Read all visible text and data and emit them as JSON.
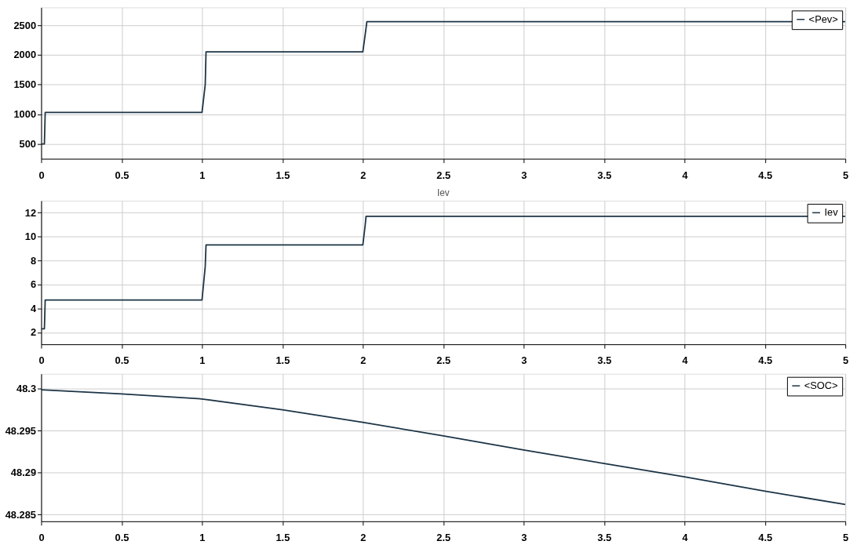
{
  "chart_data": [
    {
      "type": "line",
      "xlim": [
        0,
        5
      ],
      "xticks": [
        0,
        0.5,
        1,
        1.5,
        2,
        2.5,
        3,
        3.5,
        4,
        4.5,
        5
      ],
      "ylim": [
        250,
        2800
      ],
      "yticks": [
        500,
        1000,
        1500,
        2000,
        2500
      ],
      "grid": true,
      "legend": "top right",
      "series": [
        {
          "name": "<Pev>",
          "color": "#1c3446",
          "x": [
            0,
            0.02,
            0.025,
            1.0,
            1.02,
            1.025,
            2.0,
            2.02,
            2.025,
            5
          ],
          "values": [
            500,
            500,
            1030,
            1030,
            1500,
            2050,
            2050,
            2450,
            2560,
            2560
          ]
        }
      ]
    },
    {
      "type": "line",
      "title": "Iev",
      "xlim": [
        0,
        5
      ],
      "xticks": [
        0,
        0.5,
        1,
        1.5,
        2,
        2.5,
        3,
        3.5,
        4,
        4.5,
        5
      ],
      "ylim": [
        1,
        13
      ],
      "yticks": [
        2,
        4,
        6,
        8,
        10,
        12
      ],
      "grid": true,
      "legend": "top right",
      "series": [
        {
          "name": "Iev",
          "color": "#1c3446",
          "x": [
            0,
            0.02,
            0.025,
            1.0,
            1.02,
            1.025,
            2.0,
            2.015,
            2.02,
            5
          ],
          "values": [
            2.3,
            2.3,
            4.7,
            4.7,
            7.5,
            9.3,
            9.3,
            11,
            11.7,
            11.7
          ]
        }
      ]
    },
    {
      "type": "line",
      "xlim": [
        0,
        5
      ],
      "xticks": [
        0,
        0.5,
        1,
        1.5,
        2,
        2.5,
        3,
        3.5,
        4,
        4.5,
        5
      ],
      "ylim": [
        48.2842,
        48.3018
      ],
      "yticks": [
        48.285,
        48.29,
        48.295,
        48.3
      ],
      "grid": true,
      "legend": "top right",
      "series": [
        {
          "name": "<SOC>",
          "color": "#1c3446",
          "x": [
            0,
            0.5,
            1,
            1.5,
            2,
            2.5,
            3,
            3.5,
            4,
            4.5,
            5
          ],
          "values": [
            48.2999,
            48.2994,
            48.2988,
            48.2975,
            48.296,
            48.2944,
            48.2927,
            48.2911,
            48.2895,
            48.2878,
            48.2862
          ]
        }
      ]
    }
  ]
}
